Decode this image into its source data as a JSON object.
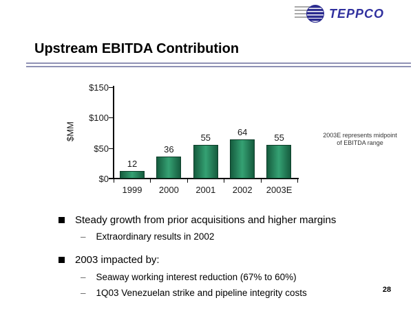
{
  "logo": {
    "text": "TEPPCO"
  },
  "header": {
    "title": "Upstream EBITDA Contribution"
  },
  "chart_note": {
    "line1": "2003E represents midpoint",
    "line2": "of EBITDA range"
  },
  "chart_data": {
    "type": "bar",
    "categories": [
      "1999",
      "2000",
      "2001",
      "2002",
      "2003E"
    ],
    "values": [
      12,
      36,
      55,
      64,
      55
    ],
    "data_labels": [
      "12",
      "36",
      "55",
      "64",
      "55"
    ],
    "title": "",
    "xlabel": "",
    "ylabel": "$MM",
    "ylim": [
      0,
      150
    ],
    "y_ticks": [
      {
        "value": 0,
        "label": "$0"
      },
      {
        "value": 50,
        "label": "$50"
      },
      {
        "value": 100,
        "label": "$100"
      },
      {
        "value": 150,
        "label": "$150"
      }
    ],
    "grid": false,
    "legend": false,
    "annotation": "2003E represents midpoint of EBITDA range",
    "bar_colors": {
      "edge": "#155c3e",
      "center": "#35a173",
      "outline": "#0d3d29"
    }
  },
  "bullets": [
    {
      "text": "Steady growth from prior acquisitions and higher margins",
      "sub": [
        "Extraordinary results in 2002"
      ]
    },
    {
      "text": "2003 impacted by:",
      "sub": [
        "Seaway working interest reduction (67% to 60%)",
        "1Q03 Venezuelan strike and pipeline integrity costs"
      ]
    }
  ],
  "footer": {
    "page_number": "28"
  }
}
